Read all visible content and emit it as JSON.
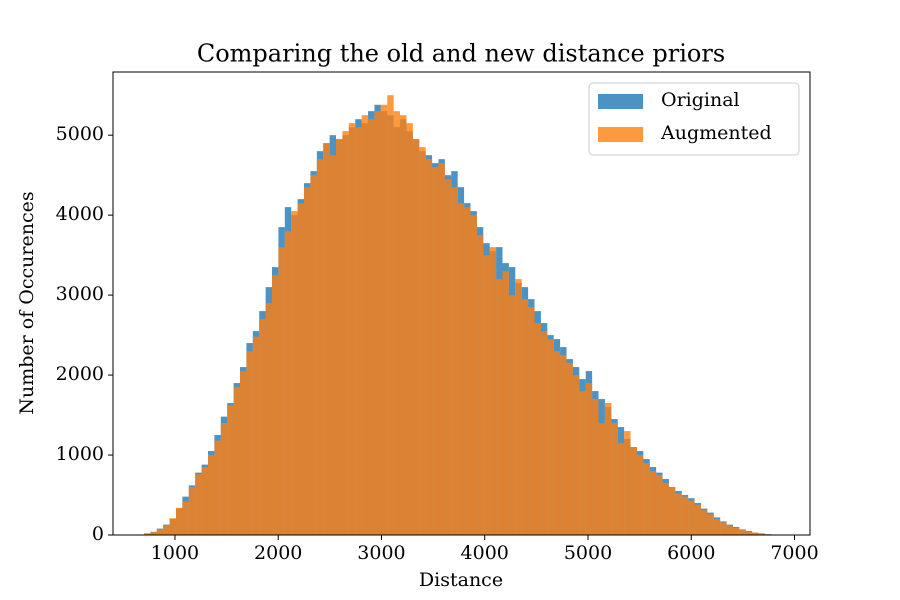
{
  "chart_data": {
    "type": "histogram",
    "title": "Comparing the old and new distance priors",
    "x_label": "Distance",
    "y_label": "Number of Occurences",
    "bins": [
      700,
      762,
      824,
      886,
      948,
      1010,
      1072,
      1134,
      1196,
      1258,
      1320,
      1382,
      1444,
      1506,
      1568,
      1630,
      1692,
      1754,
      1816,
      1878,
      1940,
      2002,
      2064,
      2126,
      2188,
      2250,
      2312,
      2374,
      2436,
      2498,
      2560,
      2622,
      2684,
      2746,
      2808,
      2870,
      2932,
      2994,
      3056,
      3118,
      3180,
      3242,
      3304,
      3366,
      3428,
      3490,
      3552,
      3614,
      3676,
      3738,
      3800,
      3862,
      3924,
      3986,
      4048,
      4110,
      4172,
      4234,
      4296,
      4358,
      4420,
      4482,
      4544,
      4606,
      4668,
      4730,
      4792,
      4854,
      4916,
      4978,
      5040,
      5102,
      5164,
      5226,
      5288,
      5350,
      5412,
      5474,
      5536,
      5598,
      5660,
      5722,
      5784,
      5846,
      5908,
      5970,
      6032,
      6094,
      6156,
      6218,
      6280,
      6342,
      6404,
      6466,
      6528,
      6590,
      6652,
      6714,
      6776,
      6838,
      6900
    ],
    "series": [
      {
        "name": "Original",
        "color": "#1f77b4",
        "values": [
          20,
          40,
          80,
          130,
          200,
          330,
          480,
          620,
          780,
          880,
          1050,
          1250,
          1480,
          1650,
          1900,
          2100,
          2400,
          2550,
          2800,
          3100,
          3350,
          3850,
          4100,
          4000,
          4200,
          4400,
          4550,
          4800,
          4900,
          5000,
          4950,
          5000,
          5100,
          5200,
          5150,
          5300,
          5380,
          5300,
          5250,
          5100,
          5200,
          5050,
          4950,
          4800,
          4750,
          4650,
          4700,
          4500,
          4550,
          4350,
          4150,
          4050,
          3850,
          3650,
          3550,
          3600,
          3400,
          3350,
          3150,
          3100,
          2950,
          2800,
          2650,
          2500,
          2450,
          2350,
          2200,
          2100,
          1950,
          2050,
          1800,
          1700,
          1600,
          1450,
          1350,
          1200,
          1100,
          1050,
          950,
          850,
          780,
          700,
          600,
          550,
          500,
          460,
          400,
          330,
          280,
          220,
          170,
          130,
          100,
          70,
          50,
          30,
          20,
          10,
          5,
          2
        ]
      },
      {
        "name": "Augmented",
        "color": "#ff7f0e",
        "values": [
          15,
          35,
          70,
          120,
          210,
          340,
          420,
          600,
          760,
          850,
          1000,
          1180,
          1400,
          1620,
          1850,
          2050,
          2300,
          2480,
          2700,
          2900,
          3250,
          3600,
          3800,
          4050,
          4150,
          4350,
          4500,
          4700,
          4900,
          4750,
          4950,
          5050,
          5150,
          5100,
          5250,
          5200,
          5300,
          5380,
          5500,
          5300,
          5250,
          5150,
          4950,
          4850,
          4700,
          4600,
          4650,
          4450,
          4350,
          4150,
          4100,
          4000,
          3750,
          3500,
          3600,
          3200,
          3300,
          3000,
          3200,
          2950,
          2850,
          2650,
          2550,
          2450,
          2300,
          2250,
          2150,
          2000,
          1800,
          1900,
          1700,
          1400,
          1650,
          1400,
          1150,
          1300,
          1100,
          1000,
          900,
          800,
          750,
          650,
          600,
          520,
          480,
          430,
          380,
          310,
          260,
          200,
          160,
          120,
          90,
          65,
          45,
          30,
          15,
          8,
          4,
          2
        ]
      }
    ],
    "opacity": 0.8,
    "xlim": [
      400,
      7150
    ],
    "ylim": [
      0,
      5790
    ],
    "xticks": [
      1000,
      2000,
      3000,
      4000,
      5000,
      6000,
      7000
    ],
    "yticks": [
      0,
      1000,
      2000,
      3000,
      4000,
      5000
    ],
    "legend": "upper right"
  }
}
